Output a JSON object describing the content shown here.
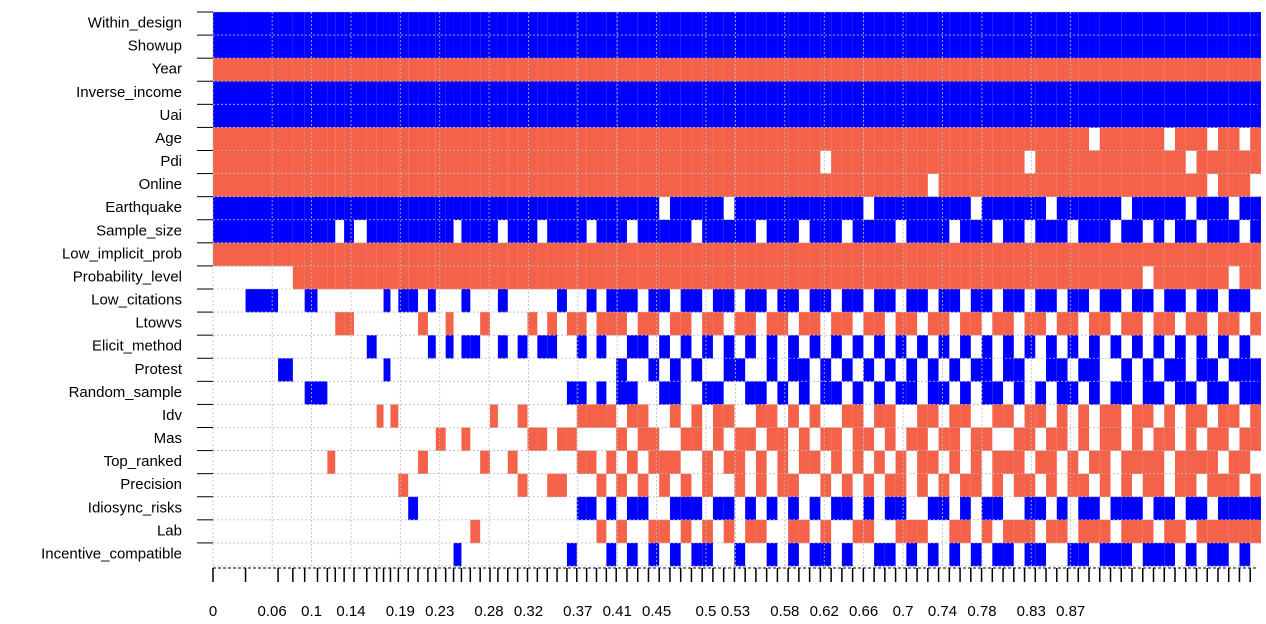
{
  "chart_data": {
    "type": "bma-image",
    "rows": [
      {
        "name": "Within_design",
        "color": "#0000ff"
      },
      {
        "name": "Showup",
        "color": "#0000ff"
      },
      {
        "name": "Year",
        "color": "#f4624a"
      },
      {
        "name": "Inverse_income",
        "color": "#0000ff"
      },
      {
        "name": "Uai",
        "color": "#0000ff"
      },
      {
        "name": "Age",
        "color": "#f4624a"
      },
      {
        "name": "Pdi",
        "color": "#f4624a"
      },
      {
        "name": "Online",
        "color": "#f4624a"
      },
      {
        "name": "Earthquake",
        "color": "#0000ff"
      },
      {
        "name": "Sample_size",
        "color": "#0000ff"
      },
      {
        "name": "Low_implicit_prob",
        "color": "#f4624a"
      },
      {
        "name": "Probability_level",
        "color": "#f4624a"
      },
      {
        "name": "Low_citations",
        "color": "#0000ff"
      },
      {
        "name": "Ltowvs",
        "color": "#f4624a"
      },
      {
        "name": "Elicit_method",
        "color": "#0000ff"
      },
      {
        "name": "Protest",
        "color": "#0000ff"
      },
      {
        "name": "Random_sample",
        "color": "#0000ff"
      },
      {
        "name": "Idv",
        "color": "#f4624a"
      },
      {
        "name": "Mas",
        "color": "#f4624a"
      },
      {
        "name": "Top_ranked",
        "color": "#f4624a"
      },
      {
        "name": "Precision",
        "color": "#f4624a"
      },
      {
        "name": "Idiosync_risks",
        "color": "#0000ff"
      },
      {
        "name": "Lab",
        "color": "#f4624a"
      },
      {
        "name": "Incentive_compatible",
        "color": "#0000ff"
      }
    ],
    "models": [
      {
        "w": 0.033,
        "incl": "111111111110000000000000"
      },
      {
        "w": 0.033,
        "incl": "111111111110100000000000"
      },
      {
        "w": 0.015,
        "incl": "111111111110000100000000"
      },
      {
        "w": 0.012,
        "incl": "111111111111000000000000"
      },
      {
        "w": 0.013,
        "incl": "111111111111100010000000"
      },
      {
        "w": 0.01,
        "incl": "111111111111000010000000"
      },
      {
        "w": 0.008,
        "incl": "111111111111000000010000"
      },
      {
        "w": 0.009,
        "incl": "111111111011010000000000"
      },
      {
        "w": 0.01,
        "incl": "111111111111010000000000"
      },
      {
        "w": 0.013,
        "incl": "111111111011000000000000"
      },
      {
        "w": 0.01,
        "incl": "111111111111001000000000"
      },
      {
        "w": 0.007,
        "incl": "111111111111000001000000"
      },
      {
        "w": 0.007,
        "incl": "111111111111100100000000"
      },
      {
        "w": 0.008,
        "incl": "111111111111000001000000"
      },
      {
        "w": 0.01,
        "incl": "111111111111100000001000"
      },
      {
        "w": 0.01,
        "incl": "111111111111100000000100"
      },
      {
        "w": 0.01,
        "incl": "111111111111010000010000"
      },
      {
        "w": 0.008,
        "incl": "111111111111101000000000"
      },
      {
        "w": 0.01,
        "incl": "111111111111000000100000"
      },
      {
        "w": 0.008,
        "incl": "111111111111011000000000"
      },
      {
        "w": 0.008,
        "incl": "111111111011000000000001"
      },
      {
        "w": 0.009,
        "incl": "111111111111101000100000"
      },
      {
        "w": 0.01,
        "incl": "111111111111001000000010"
      },
      {
        "w": 0.01,
        "incl": "111111111111010000010000"
      },
      {
        "w": 0.008,
        "incl": "111111111111000001000000"
      },
      {
        "w": 0.01,
        "incl": "111111111011101000000000"
      },
      {
        "w": 0.01,
        "incl": "111111111111000000010000"
      },
      {
        "w": 0.01,
        "incl": "111111111111001001001000"
      },
      {
        "w": 0.01,
        "incl": "111111111111010000100000"
      },
      {
        "w": 0.01,
        "incl": "111111111011001000100000"
      },
      {
        "w": 0.01,
        "incl": "111111111111011000001000"
      },
      {
        "w": 0.01,
        "incl": "111111111111100000101000"
      },
      {
        "w": 0.01,
        "incl": "111111111111010010100001"
      },
      {
        "w": 0.01,
        "incl": "111111111111011011010100"
      },
      {
        "w": 0.01,
        "incl": "111111111011100001010100"
      },
      {
        "w": 0.01,
        "incl": "111111111111011011001010"
      },
      {
        "w": 0.01,
        "incl": "111111111111110001010101"
      },
      {
        "w": 0.0109,
        "incl": "111111111111110110101010"
      },
      {
        "w": 0.0109,
        "incl": "111111111011101011010101"
      },
      {
        "w": 0.0109,
        "incl": "111111111111011001101100"
      },
      {
        "w": 0.0109,
        "incl": "111111111111110100110011"
      },
      {
        "w": 0.0109,
        "incl": "111111110111101010011010"
      },
      {
        "w": 0.0109,
        "incl": "111111111111010111010101"
      },
      {
        "w": 0.0109,
        "incl": "111111111111111000101110"
      },
      {
        "w": 0.0109,
        "incl": "111111111011100101100101"
      },
      {
        "w": 0.0109,
        "incl": "111111111111011010011011"
      },
      {
        "w": 0.0109,
        "incl": "111111111111110011100100"
      },
      {
        "w": 0.0109,
        "incl": "111111110111101101010110"
      },
      {
        "w": 0.0109,
        "incl": "111111111111010100111001"
      },
      {
        "w": 0.0109,
        "incl": "111111111111111010100110"
      },
      {
        "w": 0.0109,
        "incl": "111111111011100011011010"
      },
      {
        "w": 0.0109,
        "incl": "111111111111011101100101"
      },
      {
        "w": 0.0109,
        "incl": "111111111111110010111000"
      },
      {
        "w": 0.0109,
        "incl": "111111111111101101001111"
      },
      {
        "w": 0.0109,
        "incl": "111111111011010110110010"
      },
      {
        "w": 0.0109,
        "incl": "111111111111111001010101"
      },
      {
        "w": 0.0109,
        "incl": "111111011111100110101011"
      },
      {
        "w": 0.0109,
        "incl": "111111111111011010110100"
      },
      {
        "w": 0.0109,
        "incl": "111111111011110101001101"
      },
      {
        "w": 0.0109,
        "incl": "111111111111101011110010"
      },
      {
        "w": 0.0109,
        "incl": "111111110111010100101110"
      },
      {
        "w": 0.0109,
        "incl": "111111111111111011010001"
      },
      {
        "w": 0.0109,
        "incl": "111111111111100101101101"
      },
      {
        "w": 0.0109,
        "incl": "111111111011011010011110"
      },
      {
        "w": 0.0109,
        "incl": "111111111111110110100011"
      },
      {
        "w": 0.0109,
        "incl": "111111111111101001111010"
      },
      {
        "w": 0.0109,
        "incl": "111111101111010111010101"
      },
      {
        "w": 0.0109,
        "incl": "111111111111111010101100"
      },
      {
        "w": 0.0109,
        "incl": "111111111011100101110011"
      },
      {
        "w": 0.0109,
        "incl": "111111111111011011001110"
      },
      {
        "w": 0.0109,
        "incl": "111111110111110100111001"
      },
      {
        "w": 0.0109,
        "incl": "111111111111101110100110"
      },
      {
        "w": 0.0109,
        "incl": "111111111011010011011101"
      },
      {
        "w": 0.0109,
        "incl": "111111111111111101010011"
      },
      {
        "w": 0.0109,
        "incl": "111111111111100110111010"
      },
      {
        "w": 0.0109,
        "incl": "111111011011011001101111"
      },
      {
        "w": 0.0109,
        "incl": "111111111111110011010101"
      },
      {
        "w": 0.0109,
        "incl": "111111110111101100111010"
      },
      {
        "w": 0.0109,
        "incl": "111111111111010111100110"
      },
      {
        "w": 0.0109,
        "incl": "111111111011111010011001"
      },
      {
        "w": 0.0109,
        "incl": "111111111111100101101111"
      },
      {
        "w": 0.0109,
        "incl": "111110111111011110010110"
      },
      {
        "w": 0.0109,
        "incl": "111111111111110001111011"
      },
      {
        "w": 0.0109,
        "incl": "111111111011101011100101"
      },
      {
        "w": 0.0109,
        "incl": "111111110111010110011111"
      },
      {
        "w": 0.0109,
        "incl": "111111111111111001110110"
      },
      {
        "w": 0.0109,
        "incl": "111111111010100111011011"
      },
      {
        "w": 0.0109,
        "incl": "111111111111011010111101"
      },
      {
        "w": 0.0109,
        "incl": "111110111011110101100111"
      },
      {
        "w": 0.0109,
        "incl": "111111111111101110011010"
      },
      {
        "w": 0.0109,
        "incl": "111111010111010011111101"
      },
      {
        "w": 0.0109,
        "incl": "111111111011111101010110"
      },
      {
        "w": 0.0109,
        "incl": "111110101111100110111011"
      },
      {
        "w": 0.0109,
        "incl": "111111111111011011101111"
      },
      {
        "w": 0.0109,
        "incl": "111111110110110101011110"
      },
      {
        "w": 0.0109,
        "incl": "111110111011101110110111"
      },
      {
        "w": 0.0109,
        "incl": "111111101111010111101110"
      }
    ],
    "xlim": [
      0,
      1.06
    ],
    "xticks": [
      0,
      0.06,
      0.1,
      0.14,
      0.19,
      0.23,
      0.28,
      0.32,
      0.37,
      0.41,
      0.45,
      0.5,
      0.53,
      0.58,
      0.62,
      0.66,
      0.7,
      0.74,
      0.78,
      0.83,
      0.87
    ],
    "grid": true
  }
}
